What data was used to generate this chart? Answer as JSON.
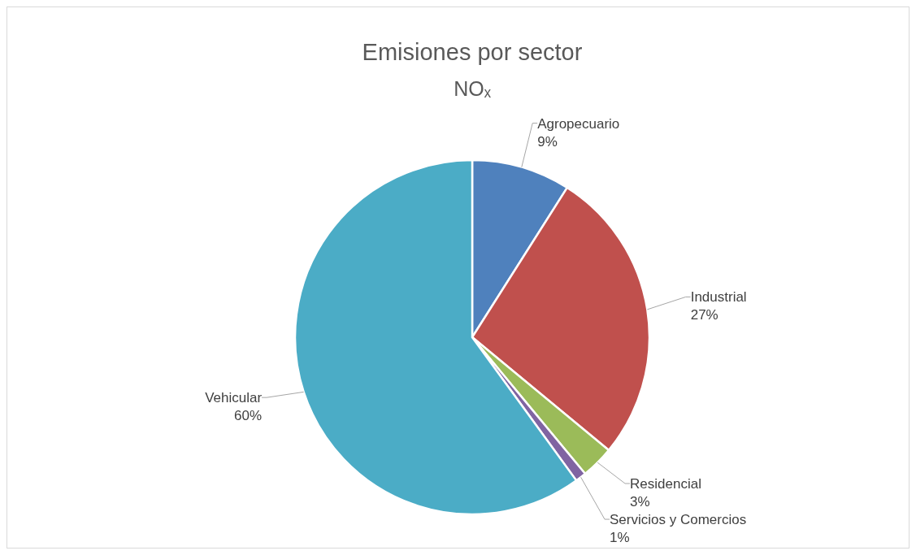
{
  "chart_data": {
    "type": "pie",
    "title": "Emisiones por sector",
    "subtitle": "NOₓ",
    "categories": [
      "Agropecuario",
      "Industrial",
      "Residencial",
      "Servicios y Comercios",
      "Vehicular"
    ],
    "values": [
      9,
      27,
      3,
      1,
      60
    ],
    "value_labels": [
      "9%",
      "27%",
      "3%",
      "1%",
      "60%"
    ],
    "colors": [
      "#4f81bd",
      "#c0504d",
      "#9bbb59",
      "#8064a2",
      "#4bacc6"
    ]
  }
}
